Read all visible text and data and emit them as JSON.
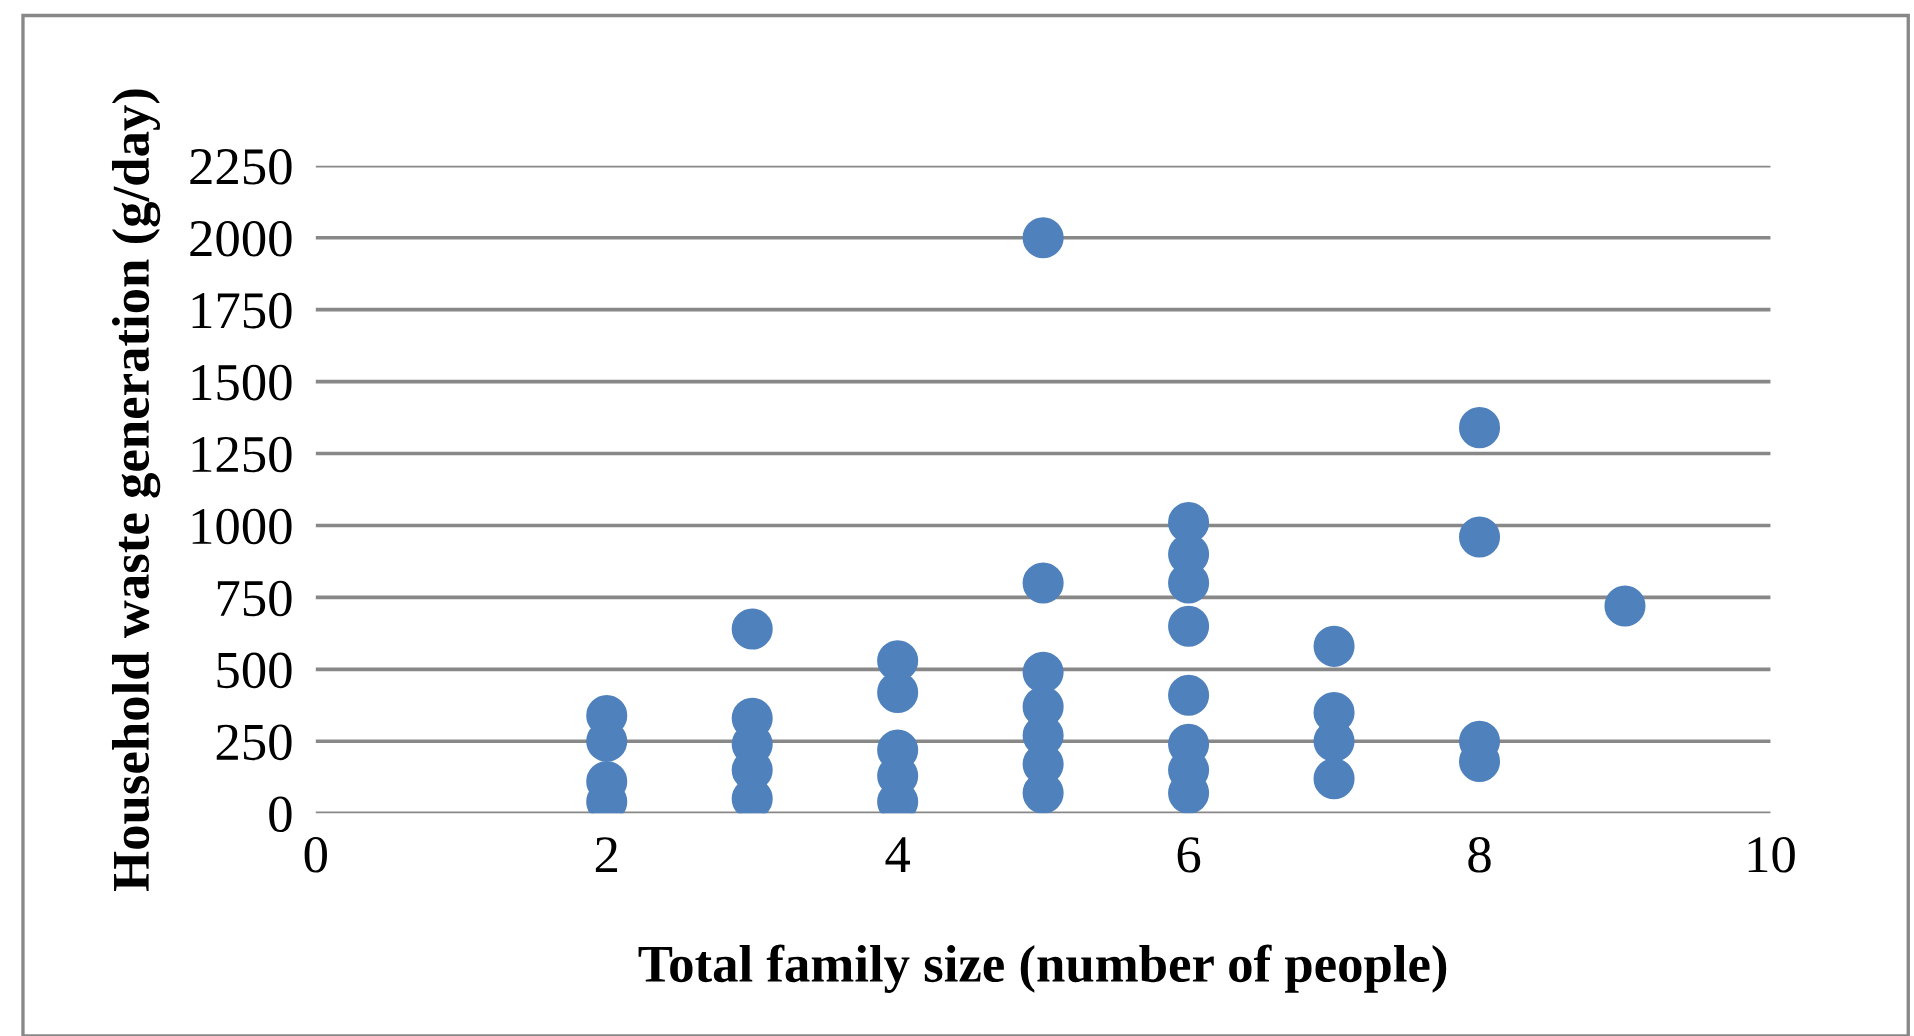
{
  "chart_data": {
    "type": "scatter",
    "xlabel": "Total family size (number of people)",
    "ylabel": "Household waste generation (g/day)",
    "series": [
      {
        "color": "#4f81bd",
        "x": [
          2,
          2,
          2,
          2,
          3,
          3,
          3,
          3,
          3,
          4,
          4,
          4,
          4,
          4,
          5,
          5,
          5,
          5,
          5,
          5,
          5,
          6,
          6,
          6,
          6,
          6,
          6,
          6,
          6,
          7,
          7,
          7,
          7,
          8,
          8,
          8,
          8,
          9
        ],
        "values": [
          340,
          250,
          110,
          40,
          640,
          330,
          240,
          150,
          50,
          530,
          420,
          220,
          130,
          40,
          2000,
          800,
          490,
          370,
          270,
          170,
          70,
          1010,
          900,
          800,
          650,
          410,
          240,
          150,
          70,
          580,
          350,
          250,
          120,
          1340,
          960,
          250,
          180,
          720
        ]
      }
    ],
    "xlim": [
      0,
      10
    ],
    "xticks": [
      0,
      2,
      4,
      6,
      8,
      10
    ],
    "ylim": [
      0,
      2250
    ],
    "yticks": [
      0,
      250,
      500,
      750,
      1000,
      1250,
      1500,
      1750,
      2000,
      2250
    ],
    "grid": "y",
    "marker": "circle",
    "legend": false
  }
}
